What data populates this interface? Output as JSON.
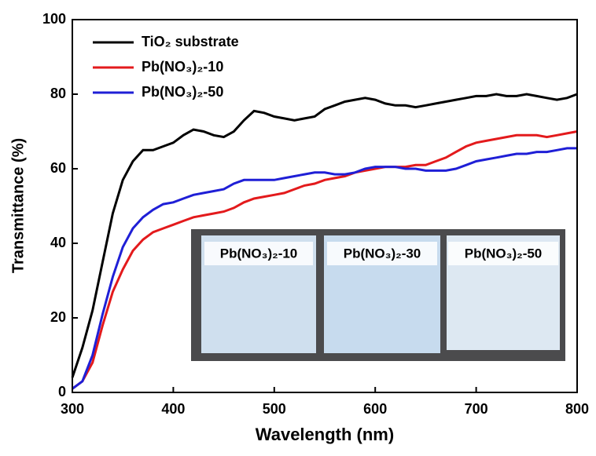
{
  "chart_data": {
    "type": "line",
    "xlabel": "Wavelength (nm)",
    "ylabel": "Transmittance (%)",
    "x": [
      300,
      310,
      320,
      330,
      340,
      350,
      360,
      370,
      380,
      390,
      400,
      410,
      420,
      430,
      440,
      450,
      460,
      470,
      480,
      490,
      500,
      510,
      520,
      530,
      540,
      550,
      560,
      570,
      580,
      590,
      600,
      610,
      620,
      630,
      640,
      650,
      660,
      670,
      680,
      690,
      700,
      710,
      720,
      730,
      740,
      750,
      760,
      770,
      780,
      790,
      800
    ],
    "series": [
      {
        "name": "TiO₂ substrate",
        "color": "#000000",
        "values": [
          4,
          12,
          22,
          35,
          48,
          57,
          62,
          65,
          65,
          66,
          67,
          69,
          70.5,
          70,
          69,
          68.5,
          70,
          73,
          75.5,
          75,
          74,
          73.5,
          73,
          73.5,
          74,
          76,
          77,
          78,
          78.5,
          79,
          78.5,
          77.5,
          77,
          77,
          76.5,
          77,
          77.5,
          78,
          78.5,
          79,
          79.5,
          79.5,
          80,
          79.5,
          79.5,
          80,
          79.5,
          79,
          78.5,
          79,
          80
        ]
      },
      {
        "name": "Pb(NO₃)₂-10",
        "color": "#e31a1c",
        "values": [
          1,
          3,
          8,
          18,
          27,
          33,
          38,
          41,
          43,
          44,
          45,
          46,
          47,
          47.5,
          48,
          48.5,
          49.5,
          51,
          52,
          52.5,
          53,
          53.5,
          54.5,
          55.5,
          56,
          57,
          57.5,
          58,
          59,
          59.5,
          60,
          60.5,
          60.5,
          60.5,
          61,
          61,
          62,
          63,
          64.5,
          66,
          67,
          67.5,
          68,
          68.5,
          69,
          69,
          69,
          68.5,
          69,
          69.5,
          70
        ]
      },
      {
        "name": "Pb(NO₃)₂-50",
        "color": "#1f1fd6",
        "values": [
          1,
          3,
          10,
          21,
          31,
          39,
          44,
          47,
          49,
          50.5,
          51,
          52,
          53,
          53.5,
          54,
          54.5,
          56,
          57,
          57,
          57,
          57,
          57.5,
          58,
          58.5,
          59,
          59,
          58.5,
          58.5,
          59,
          60,
          60.5,
          60.5,
          60.5,
          60,
          60,
          59.5,
          59.5,
          59.5,
          60,
          61,
          62,
          62.5,
          63,
          63.5,
          64,
          64,
          64.5,
          64.5,
          65,
          65.5,
          65.5
        ]
      }
    ],
    "xlim": [
      300,
      800
    ],
    "ylim": [
      0,
      100
    ],
    "xticks": [
      300,
      400,
      500,
      600,
      700,
      800
    ],
    "yticks": [
      0,
      20,
      40,
      60,
      80,
      100
    ],
    "legend": "upper left",
    "inset": {
      "labels": [
        "Pb(NO₃)₂-10",
        "Pb(NO₃)₂-30",
        "Pb(NO₃)₂-50"
      ]
    }
  }
}
